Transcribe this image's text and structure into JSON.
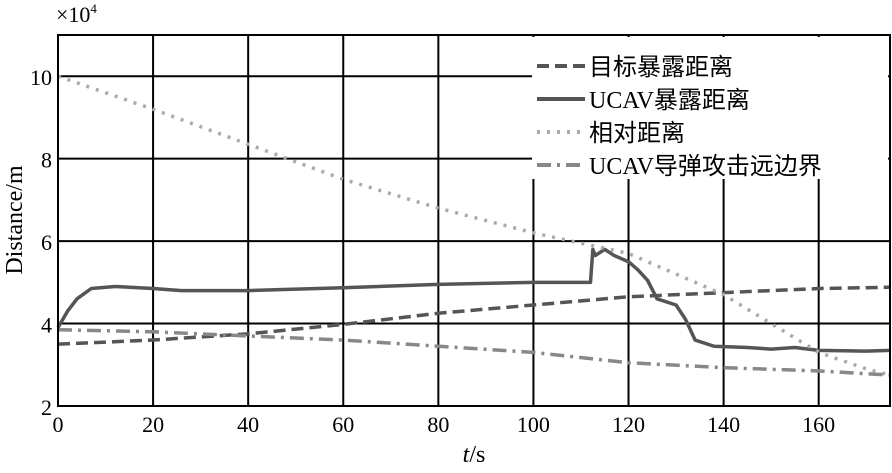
{
  "chart_data": {
    "type": "line",
    "title": "",
    "xlabel": "t/s",
    "xlabel_italic_part": "t",
    "xlabel_rest": "/s",
    "ylabel": "Distance/m",
    "y_multiplier": "×10",
    "y_multiplier_exp": "4",
    "xlim": [
      0,
      175
    ],
    "ylim": [
      2,
      11
    ],
    "xticks": [
      0,
      20,
      40,
      60,
      80,
      100,
      120,
      140,
      160
    ],
    "yticks": [
      2,
      4,
      6,
      8,
      10
    ],
    "grid": true,
    "legend_position": "top-right",
    "series": [
      {
        "name": "目标暴露距离",
        "style": "dashed",
        "color": "#555555",
        "x": [
          0,
          20,
          40,
          60,
          80,
          100,
          120,
          140,
          160,
          175
        ],
        "y": [
          3.5,
          3.6,
          3.75,
          3.98,
          4.25,
          4.45,
          4.65,
          4.75,
          4.85,
          4.88
        ]
      },
      {
        "name": "UCAV暴露距离",
        "style": "solid",
        "color": "#555555",
        "x": [
          0,
          2,
          4,
          7,
          12,
          20,
          26,
          40,
          60,
          80,
          100,
          112,
          112.5,
          113,
          115,
          117,
          120,
          122,
          124,
          126,
          130,
          132,
          134,
          138,
          145,
          150,
          155,
          160,
          170,
          175
        ],
        "y": [
          3.9,
          4.3,
          4.6,
          4.85,
          4.9,
          4.85,
          4.8,
          4.8,
          4.87,
          4.95,
          5.0,
          5.0,
          5.8,
          5.65,
          5.8,
          5.65,
          5.5,
          5.3,
          5.05,
          4.6,
          4.45,
          4.1,
          3.6,
          3.45,
          3.42,
          3.38,
          3.42,
          3.35,
          3.33,
          3.35
        ]
      },
      {
        "name": "相对距离",
        "style": "dotted",
        "color": "#aaaaaa",
        "x": [
          0,
          20,
          40,
          60,
          80,
          100,
          110,
          120,
          130,
          140,
          150,
          160,
          170,
          175
        ],
        "y": [
          10,
          9.2,
          8.35,
          7.5,
          6.8,
          6.2,
          5.95,
          5.7,
          5.2,
          4.7,
          4.0,
          3.3,
          2.9,
          2.75
        ]
      },
      {
        "name": "UCAV导弹攻击远边界",
        "style": "dashdot",
        "color": "#888888",
        "x": [
          0,
          20,
          40,
          60,
          80,
          100,
          120,
          140,
          160,
          175
        ],
        "y": [
          3.85,
          3.8,
          3.7,
          3.6,
          3.45,
          3.3,
          3.05,
          2.93,
          2.85,
          2.75
        ]
      }
    ]
  }
}
